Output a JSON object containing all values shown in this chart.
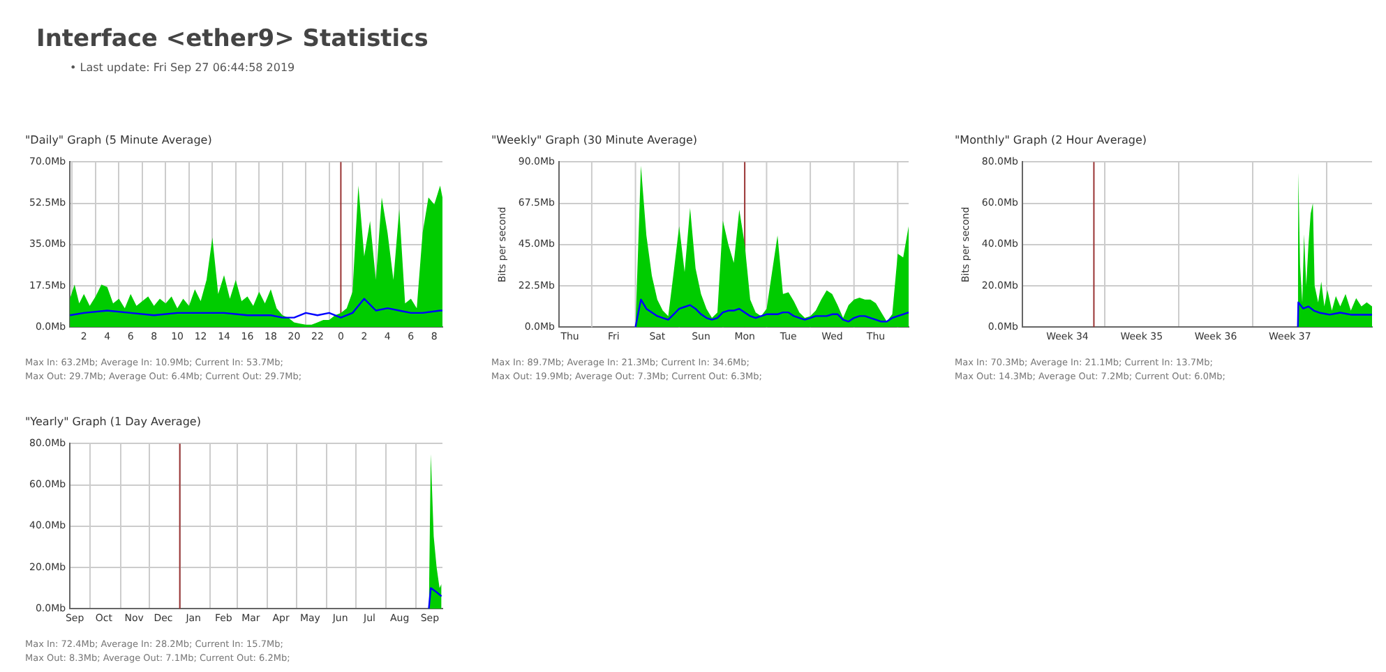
{
  "chart_data": [
    {
      "type": "other",
      "title": "Interface <ether9> Statistics",
      "annotations": [
        "• Last update: Fri Sep 27 06:44:58 2019"
      ]
    },
    {
      "type": "area",
      "title": "\"Daily\" Graph (5 Minute Average)",
      "xlim": [
        "2019-09-26T00:48",
        "2019-09-27T08:42"
      ],
      "xticks": [
        {
          "value": "2019-09-26T01:00",
          "label": null
        },
        {
          "value": "2019-09-26T02:00",
          "label": "2"
        },
        {
          "value": "2019-09-26T03:00",
          "label": null
        },
        {
          "value": "2019-09-26T04:00",
          "label": "4"
        },
        {
          "value": "2019-09-26T05:00",
          "label": null
        },
        {
          "value": "2019-09-26T06:00",
          "label": "6"
        },
        {
          "value": "2019-09-26T07:00",
          "label": null
        },
        {
          "value": "2019-09-26T08:00",
          "label": "8"
        },
        {
          "value": "2019-09-26T09:00",
          "label": null
        },
        {
          "value": "2019-09-26T10:00",
          "label": "10"
        },
        {
          "value": "2019-09-26T11:00",
          "label": null
        },
        {
          "value": "2019-09-26T12:00",
          "label": "12"
        },
        {
          "value": "2019-09-26T13:00",
          "label": null
        },
        {
          "value": "2019-09-26T14:00",
          "label": "14"
        },
        {
          "value": "2019-09-26T15:00",
          "label": null
        },
        {
          "value": "2019-09-26T16:00",
          "label": "16"
        },
        {
          "value": "2019-09-26T17:00",
          "label": null
        },
        {
          "value": "2019-09-26T18:00",
          "label": "18"
        },
        {
          "value": "2019-09-26T19:00",
          "label": null
        },
        {
          "value": "2019-09-26T20:00",
          "label": "20"
        },
        {
          "value": "2019-09-26T21:00",
          "label": null
        },
        {
          "value": "2019-09-26T22:00",
          "label": "22"
        },
        {
          "value": "2019-09-26T23:00",
          "label": null
        },
        {
          "value": "2019-09-27T00:00",
          "label": "0"
        },
        {
          "value": "2019-09-27T01:00",
          "label": null
        },
        {
          "value": "2019-09-27T02:00",
          "label": "2"
        },
        {
          "value": "2019-09-27T03:00",
          "label": null
        },
        {
          "value": "2019-09-27T04:00",
          "label": "4"
        },
        {
          "value": "2019-09-27T05:00",
          "label": null
        },
        {
          "value": "2019-09-27T06:00",
          "label": "6"
        },
        {
          "value": "2019-09-27T07:00",
          "label": null
        },
        {
          "value": "2019-09-27T08:00",
          "label": "8"
        }
      ],
      "ylim": [
        0,
        70
      ],
      "yticks": [
        {
          "value": 0,
          "label": "0.0Mb"
        },
        {
          "value": 17.5,
          "label": "17.5Mb"
        },
        {
          "value": 35,
          "label": "35.0Mb"
        },
        {
          "value": 52.5,
          "label": "52.5Mb"
        },
        {
          "value": 70,
          "label": "70.0Mb"
        }
      ],
      "grid": true,
      "ref_lines": [
        {
          "axis": "x",
          "value": "2019-09-27T00:00",
          "color": "#993333"
        }
      ],
      "series": [
        {
          "type": "area",
          "color": "#00cc00",
          "x": [
            "2019-09-26T00:48",
            "2019-09-26T01:12",
            "2019-09-26T01:36",
            "2019-09-26T02:00",
            "2019-09-26T02:30",
            "2019-09-26T03:00",
            "2019-09-26T03:30",
            "2019-09-26T04:00",
            "2019-09-26T04:30",
            "2019-09-26T05:00",
            "2019-09-26T05:30",
            "2019-09-26T06:00",
            "2019-09-26T06:30",
            "2019-09-26T07:00",
            "2019-09-26T07:30",
            "2019-09-26T08:00",
            "2019-09-26T08:30",
            "2019-09-26T09:00",
            "2019-09-26T09:30",
            "2019-09-26T10:00",
            "2019-09-26T10:30",
            "2019-09-26T11:00",
            "2019-09-26T11:30",
            "2019-09-26T12:00",
            "2019-09-26T12:30",
            "2019-09-26T13:00",
            "2019-09-26T13:30",
            "2019-09-26T14:00",
            "2019-09-26T14:30",
            "2019-09-26T15:00",
            "2019-09-26T15:30",
            "2019-09-26T16:00",
            "2019-09-26T16:30",
            "2019-09-26T17:00",
            "2019-09-26T17:30",
            "2019-09-26T18:00",
            "2019-09-26T18:30",
            "2019-09-26T19:00",
            "2019-09-26T19:30",
            "2019-09-26T20:00",
            "2019-09-26T20:30",
            "2019-09-26T21:00",
            "2019-09-26T21:30",
            "2019-09-26T22:00",
            "2019-09-26T22:30",
            "2019-09-26T23:00",
            "2019-09-26T23:30",
            "2019-09-27T00:00",
            "2019-09-27T00:30",
            "2019-09-27T01:00",
            "2019-09-27T01:30",
            "2019-09-27T02:00",
            "2019-09-27T02:30",
            "2019-09-27T03:00",
            "2019-09-27T03:30",
            "2019-09-27T04:00",
            "2019-09-27T04:30",
            "2019-09-27T05:00",
            "2019-09-27T05:30",
            "2019-09-27T06:00",
            "2019-09-27T06:30",
            "2019-09-27T07:00",
            "2019-09-27T07:30",
            "2019-09-27T08:00",
            "2019-09-27T08:30",
            "2019-09-27T08:42"
          ],
          "values": [
            12,
            18,
            10,
            14,
            9,
            13,
            18,
            17,
            10,
            12,
            8,
            14,
            9,
            11,
            13,
            9,
            12,
            10,
            13,
            8,
            12,
            9,
            16,
            11,
            20,
            38,
            14,
            22,
            12,
            20,
            11,
            13,
            9,
            15,
            10,
            16,
            8,
            5,
            4,
            2,
            1.5,
            1,
            1,
            2,
            3,
            3,
            5,
            6,
            8,
            15,
            60,
            30,
            45,
            20,
            55,
            40,
            20,
            50,
            10,
            12,
            8,
            40,
            55,
            52,
            60,
            55
          ]
        },
        {
          "type": "line",
          "color": "#0000ff",
          "x": [
            "2019-09-26T00:48",
            "2019-09-26T02:00",
            "2019-09-26T04:00",
            "2019-09-26T06:00",
            "2019-09-26T08:00",
            "2019-09-26T10:00",
            "2019-09-26T12:00",
            "2019-09-26T14:00",
            "2019-09-26T16:00",
            "2019-09-26T18:00",
            "2019-09-26T19:00",
            "2019-09-26T20:00",
            "2019-09-26T21:00",
            "2019-09-26T22:00",
            "2019-09-26T23:00",
            "2019-09-27T00:00",
            "2019-09-27T01:00",
            "2019-09-27T02:00",
            "2019-09-27T03:00",
            "2019-09-27T04:00",
            "2019-09-27T05:00",
            "2019-09-27T06:00",
            "2019-09-27T07:00",
            "2019-09-27T08:30",
            "2019-09-27T08:42"
          ],
          "values": [
            5,
            6,
            7,
            6,
            5,
            6,
            6,
            6,
            5,
            5,
            4,
            4,
            6,
            5,
            6,
            4,
            6,
            12,
            7,
            8,
            7,
            6,
            6,
            7,
            7
          ]
        }
      ],
      "annotations": [
        "Max In: 63.2Mb; Average In: 10.9Mb; Current In: 53.7Mb;",
        "Max Out: 29.7Mb; Average Out: 6.4Mb; Current Out: 29.7Mb;"
      ]
    },
    {
      "type": "area",
      "title": "\"Weekly\" Graph (30 Minute Average)",
      "ylabel": "Bits per second",
      "categories": [
        null,
        null,
        "Thu",
        null,
        null,
        null,
        null,
        null,
        null,
        null,
        "Fri",
        null,
        null,
        null,
        null,
        null,
        null,
        null,
        "Sat",
        null,
        null,
        null,
        null,
        null,
        null,
        null,
        "Sun",
        null,
        null,
        null,
        null,
        null,
        null,
        null,
        "Mon",
        null,
        null,
        null,
        null,
        null,
        null,
        null,
        "Tue",
        null,
        null,
        null,
        null,
        null,
        null,
        null,
        "Wed",
        null,
        null,
        null,
        null,
        null,
        null,
        null,
        "Thu",
        null,
        null,
        null,
        null,
        null,
        null
      ],
      "ylim": [
        0,
        90
      ],
      "yticks": [
        {
          "value": 0,
          "label": "0.0Mb"
        },
        {
          "value": 22.5,
          "label": "22.5Mb"
        },
        {
          "value": 45,
          "label": "45.0Mb"
        },
        {
          "value": 67.5,
          "label": "67.5Mb"
        },
        {
          "value": 90,
          "label": "90.0Mb"
        }
      ],
      "grid": true,
      "ref_lines": [
        {
          "axis": "x",
          "value": "Mon",
          "color": "#993333"
        }
      ],
      "series": [
        {
          "type": "area",
          "color": "#00cc00",
          "values": [
            null,
            null,
            null,
            null,
            null,
            null,
            null,
            null,
            null,
            null,
            null,
            null,
            null,
            null,
            0,
            88,
            50,
            28,
            15,
            9,
            6,
            30,
            55,
            30,
            65,
            32,
            18,
            10,
            5,
            8,
            58,
            45,
            35,
            64,
            45,
            15,
            8,
            6,
            10,
            30,
            50,
            18,
            19,
            14,
            8,
            5,
            6,
            9,
            15,
            20,
            18,
            12,
            5,
            12,
            15,
            16,
            15,
            15,
            13,
            8,
            3,
            7,
            40,
            38,
            55
          ]
        },
        {
          "type": "line",
          "color": "#0000ff",
          "values": [
            null,
            null,
            null,
            null,
            null,
            null,
            null,
            null,
            null,
            null,
            null,
            null,
            null,
            null,
            0,
            15,
            10,
            8,
            6,
            5,
            4,
            7,
            10,
            11,
            12,
            10,
            7,
            5,
            4,
            5,
            8,
            9,
            9,
            10,
            8,
            6,
            5,
            6,
            7,
            7,
            7,
            8,
            8,
            6,
            5,
            4,
            5,
            6,
            6,
            6,
            7,
            7,
            4,
            3,
            5,
            6,
            6,
            5,
            4,
            3,
            3,
            5,
            6,
            7,
            8
          ]
        }
      ],
      "annotations": [
        "Max In: 89.7Mb; Average In: 21.3Mb; Current In: 34.6Mb;",
        "Max Out: 19.9Mb; Average Out: 7.3Mb; Current Out: 6.3Mb;"
      ]
    },
    {
      "type": "area",
      "title": "\"Monthly\" Graph (2 Hour Average)",
      "ylabel": "Bits per second",
      "xlim": [
        "2019-08-25T06:00",
        "2019-09-27T06:00"
      ],
      "xticks": [
        {
          "value": "2019-08-29T12:00",
          "label": "Week 34"
        },
        {
          "value": "2019-09-02",
          "label": null
        },
        {
          "value": "2019-09-05T12:00",
          "label": "Week 35"
        },
        {
          "value": "2019-09-09",
          "label": null
        },
        {
          "value": "2019-09-12T12:00",
          "label": "Week 36"
        },
        {
          "value": "2019-09-16",
          "label": null
        },
        {
          "value": "2019-09-19T12:00",
          "label": "Week 37"
        },
        {
          "value": "2019-09-23",
          "label": null
        }
      ],
      "ylim": [
        0,
        80
      ],
      "yticks": [
        {
          "value": 0,
          "label": "0.0Mb"
        },
        {
          "value": 20,
          "label": "20.0Mb"
        },
        {
          "value": 40,
          "label": "40.0Mb"
        },
        {
          "value": 60,
          "label": "60.0Mb"
        },
        {
          "value": 80,
          "label": "80.0Mb"
        }
      ],
      "grid": true,
      "ref_lines": [
        {
          "axis": "x",
          "value": "2019-09-01",
          "color": "#993333"
        }
      ],
      "series": [
        {
          "type": "area",
          "color": "#00cc00",
          "x": [
            "2019-09-20T06:00",
            "2019-09-20T07:00",
            "2019-09-20T11:00",
            "2019-09-20T16:00",
            "2019-09-20T20:00",
            "2019-09-21T01:00",
            "2019-09-21T06:00",
            "2019-09-21T11:00",
            "2019-09-21T16:00",
            "2019-09-21T20:00",
            "2019-09-22T04:00",
            "2019-09-22T11:00",
            "2019-09-22T18:00",
            "2019-09-23T01:00",
            "2019-09-23T11:00",
            "2019-09-23T20:00",
            "2019-09-24T06:00",
            "2019-09-24T18:00",
            "2019-09-25T06:00",
            "2019-09-25T18:00",
            "2019-09-26T06:00",
            "2019-09-26T18:00",
            "2019-09-27T06:00"
          ],
          "values": [
            0,
            75,
            30,
            12,
            45,
            20,
            40,
            55,
            60,
            20,
            12,
            22,
            10,
            18,
            8,
            15,
            10,
            16,
            8,
            14,
            10,
            12,
            10
          ]
        },
        {
          "type": "line",
          "color": "#0000ff",
          "x": [
            "2019-09-20T06:00",
            "2019-09-20T07:00",
            "2019-09-20T18:00",
            "2019-09-21T06:00",
            "2019-09-21T18:00",
            "2019-09-22T06:00",
            "2019-09-23T06:00",
            "2019-09-24T06:00",
            "2019-09-25T06:00",
            "2019-09-26T06:00",
            "2019-09-27T06:00"
          ],
          "values": [
            0,
            12,
            9,
            10,
            8,
            7,
            6,
            7,
            6,
            6,
            6
          ]
        }
      ],
      "annotations": [
        "Max In: 70.3Mb; Average In: 21.1Mb; Current In: 13.7Mb;",
        "Max Out: 14.3Mb; Average Out: 7.2Mb; Current Out: 6.0Mb;"
      ]
    },
    {
      "type": "area",
      "title": "\"Yearly\" Graph (1 Day Average)",
      "xlim": [
        "2018-09-10",
        "2019-09-28"
      ],
      "xticks": [
        {
          "value": "2018-09-15",
          "label": "Sep"
        },
        {
          "value": "2018-10-01",
          "label": null
        },
        {
          "value": "2018-10-15",
          "label": "Oct"
        },
        {
          "value": "2018-11-01",
          "label": null
        },
        {
          "value": "2018-11-15",
          "label": "Nov"
        },
        {
          "value": "2018-12-01",
          "label": null
        },
        {
          "value": "2018-12-15",
          "label": "Dec"
        },
        {
          "value": "2019-01-01",
          "label": null
        },
        {
          "value": "2019-01-15",
          "label": "Jan"
        },
        {
          "value": "2019-02-01",
          "label": null
        },
        {
          "value": "2019-02-15",
          "label": "Feb"
        },
        {
          "value": "2019-03-01",
          "label": null
        },
        {
          "value": "2019-03-15",
          "label": "Mar"
        },
        {
          "value": "2019-04-01",
          "label": null
        },
        {
          "value": "2019-04-15",
          "label": "Apr"
        },
        {
          "value": "2019-05-01",
          "label": null
        },
        {
          "value": "2019-05-15",
          "label": "May"
        },
        {
          "value": "2019-06-01",
          "label": null
        },
        {
          "value": "2019-06-15",
          "label": "Jun"
        },
        {
          "value": "2019-07-01",
          "label": null
        },
        {
          "value": "2019-07-15",
          "label": "Jul"
        },
        {
          "value": "2019-08-01",
          "label": null
        },
        {
          "value": "2019-08-15",
          "label": "Aug"
        },
        {
          "value": "2019-09-01",
          "label": null
        },
        {
          "value": "2019-09-15",
          "label": "Sep"
        }
      ],
      "ylim": [
        0,
        80
      ],
      "yticks": [
        {
          "value": 0,
          "label": "0.0Mb"
        },
        {
          "value": 20,
          "label": "20.0Mb"
        },
        {
          "value": 40,
          "label": "40.0Mb"
        },
        {
          "value": 60,
          "label": "60.0Mb"
        },
        {
          "value": 80,
          "label": "80.0Mb"
        }
      ],
      "grid": true,
      "ref_lines": [
        {
          "axis": "x",
          "value": "2019-01-01",
          "color": "#993333"
        }
      ],
      "series": [
        {
          "type": "area",
          "color": "#00cc00",
          "x": [
            "2019-09-14",
            "2019-09-16",
            "2019-09-19",
            "2019-09-22",
            "2019-09-25",
            "2019-09-27"
          ],
          "values": [
            0,
            75,
            35,
            20,
            10,
            12
          ]
        },
        {
          "type": "line",
          "color": "#0000ff",
          "x": [
            "2019-09-14",
            "2019-09-16",
            "2019-09-22",
            "2019-09-27"
          ],
          "values": [
            0,
            10,
            8,
            6
          ]
        }
      ],
      "annotations": [
        "Max In: 72.4Mb; Average In: 28.2Mb; Current In: 15.7Mb;",
        "Max Out: 8.3Mb; Average Out: 7.1Mb; Current Out: 6.2Mb;"
      ]
    }
  ]
}
